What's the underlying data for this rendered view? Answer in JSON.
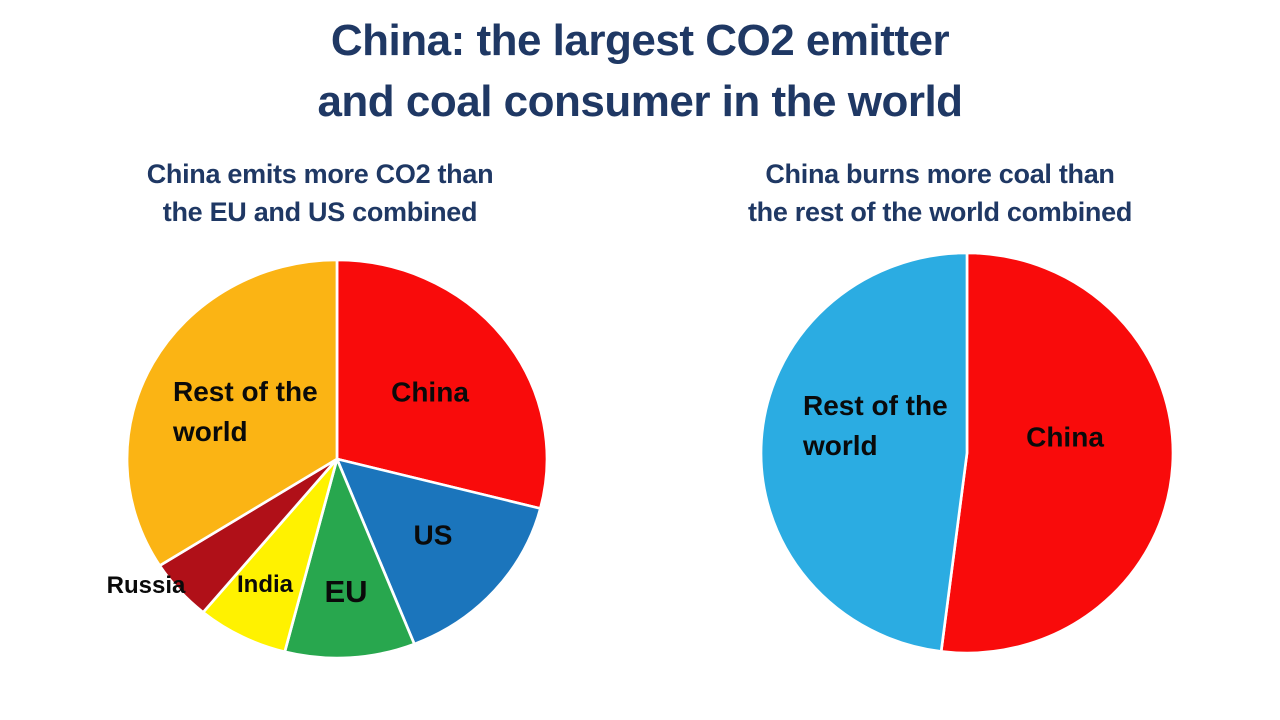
{
  "colors": {
    "heading": "#1F3864",
    "slice_label": "#0A0A0A",
    "background": "#FFFFFF",
    "slice_gap_stroke": "#FFFFFF"
  },
  "header": {
    "title": "China: the largest CO2 emitter and coal consumer in the world",
    "title_lines": [
      "China: the largest CO2 emitter",
      "and coal consumer in the world"
    ]
  },
  "chart_data": [
    {
      "type": "pie",
      "title": "China emits more CO2 than the EU and US combined",
      "title_lines": [
        "China emits more CO2 than",
        "the EU and US combined"
      ],
      "value_unit": "% share (estimated from slice angles, no numbers shown on chart)",
      "start_angle_deg": 0,
      "direction": "clockwise",
      "legend_position": "labels-on-slices",
      "slices": [
        {
          "label": "China",
          "value": 29,
          "color": "#F90B0B"
        },
        {
          "label": "US",
          "value": 15,
          "color": "#1B75BC"
        },
        {
          "label": "EU",
          "value": 10,
          "color": "#28A74E"
        },
        {
          "label": "India",
          "value": 7,
          "color": "#FFF200"
        },
        {
          "label": "Russia",
          "value": 5,
          "color": "#B01018"
        },
        {
          "label": "Rest of the world",
          "value": 34,
          "color": "#FBB414"
        }
      ]
    },
    {
      "type": "pie",
      "title": "China burns more coal than the rest of the world combined",
      "title_lines": [
        "China burns more coal than",
        "the rest of the world combined"
      ],
      "value_unit": "% share (estimated from slice angles, no numbers shown on chart)",
      "start_angle_deg": 0,
      "direction": "clockwise",
      "legend_position": "labels-on-slices",
      "slices": [
        {
          "label": "China",
          "value": 52,
          "color": "#F90B0B"
        },
        {
          "label": "Rest of the world",
          "value": 48,
          "color": "#2BACE2"
        }
      ]
    }
  ]
}
